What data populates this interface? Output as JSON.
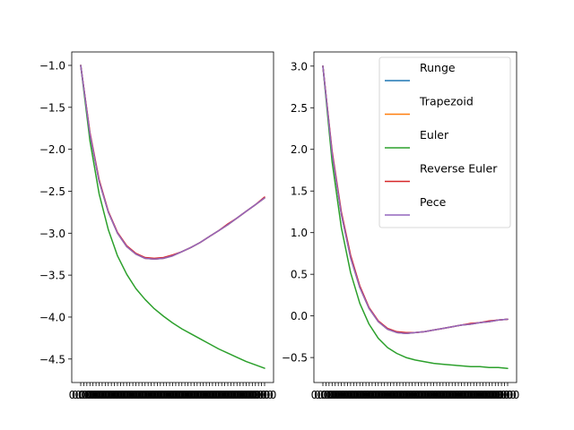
{
  "chart_data": [
    {
      "type": "line",
      "title": "",
      "xlabel": "",
      "ylabel": "",
      "xlim": [
        0,
        2
      ],
      "ylim": [
        -4.78,
        -0.84
      ],
      "yticks": [
        -1.0,
        -1.5,
        -2.0,
        -2.5,
        -3.0,
        -3.5,
        -4.0,
        -4.5
      ],
      "ytick_labels": [
        "−1.0",
        "−1.5",
        "−2.0",
        "−2.5",
        "−3.0",
        "−3.5",
        "−4.0",
        "−4.5"
      ],
      "x_overlapped_tick_text": "0.00",
      "x": [
        0,
        0.1,
        0.2,
        0.3,
        0.4,
        0.5,
        0.6,
        0.7,
        0.8,
        0.9,
        1.0,
        1.1,
        1.2,
        1.3,
        1.4,
        1.5,
        1.6,
        1.7,
        1.8,
        1.9,
        2.0
      ],
      "series": [
        {
          "name": "Runge",
          "color": "#1f77b4",
          "values": [
            -1.0,
            -1.82,
            -2.38,
            -2.75,
            -3.0,
            -3.16,
            -3.25,
            -3.3,
            -3.31,
            -3.3,
            -3.27,
            -3.22,
            -3.17,
            -3.11,
            -3.04,
            -2.97,
            -2.9,
            -2.82,
            -2.74,
            -2.66,
            -2.58
          ]
        },
        {
          "name": "Trapezoid",
          "color": "#ff7f0e",
          "values": [
            -1.0,
            -1.82,
            -2.38,
            -2.75,
            -3.0,
            -3.16,
            -3.25,
            -3.3,
            -3.31,
            -3.3,
            -3.27,
            -3.22,
            -3.17,
            -3.11,
            -3.04,
            -2.97,
            -2.9,
            -2.82,
            -2.74,
            -2.66,
            -2.58
          ]
        },
        {
          "name": "Euler",
          "color": "#2ca02c",
          "values": [
            -1.0,
            -1.9,
            -2.53,
            -2.96,
            -3.27,
            -3.49,
            -3.66,
            -3.79,
            -3.9,
            -3.99,
            -4.07,
            -4.14,
            -4.2,
            -4.26,
            -4.32,
            -4.38,
            -4.43,
            -4.48,
            -4.53,
            -4.57,
            -4.61
          ]
        },
        {
          "name": "Reverse Euler",
          "color": "#d62728",
          "values": [
            -1.0,
            -1.8,
            -2.36,
            -2.74,
            -2.99,
            -3.15,
            -3.24,
            -3.29,
            -3.3,
            -3.29,
            -3.26,
            -3.22,
            -3.17,
            -3.11,
            -3.04,
            -2.97,
            -2.89,
            -2.82,
            -2.74,
            -2.66,
            -2.57
          ]
        },
        {
          "name": "Pece",
          "color": "#9467bd",
          "values": [
            -1.0,
            -1.82,
            -2.38,
            -2.75,
            -3.0,
            -3.16,
            -3.25,
            -3.3,
            -3.31,
            -3.3,
            -3.27,
            -3.22,
            -3.17,
            -3.11,
            -3.04,
            -2.97,
            -2.9,
            -2.82,
            -2.74,
            -2.66,
            -2.58
          ]
        }
      ]
    },
    {
      "type": "line",
      "title": "",
      "xlabel": "",
      "ylabel": "",
      "xlim": [
        0,
        2
      ],
      "ylim": [
        -0.8,
        3.17
      ],
      "yticks": [
        3.0,
        2.5,
        2.0,
        1.5,
        1.0,
        0.5,
        0.0,
        -0.5
      ],
      "ytick_labels": [
        "3.0",
        "2.5",
        "2.0",
        "1.5",
        "1.0",
        "0.5",
        "0.0",
        "−0.5"
      ],
      "x_overlapped_tick_text": "0.00",
      "x": [
        0,
        0.1,
        0.2,
        0.3,
        0.4,
        0.5,
        0.6,
        0.7,
        0.8,
        0.9,
        1.0,
        1.1,
        1.2,
        1.3,
        1.4,
        1.5,
        1.6,
        1.7,
        1.8,
        1.9,
        2.0
      ],
      "series": [
        {
          "name": "Runge",
          "color": "#1f77b4",
          "values": [
            3.0,
            1.95,
            1.22,
            0.7,
            0.34,
            0.09,
            -0.07,
            -0.16,
            -0.2,
            -0.21,
            -0.2,
            -0.19,
            -0.17,
            -0.15,
            -0.13,
            -0.11,
            -0.1,
            -0.08,
            -0.07,
            -0.05,
            -0.04
          ]
        },
        {
          "name": "Trapezoid",
          "color": "#ff7f0e",
          "values": [
            3.0,
            1.95,
            1.22,
            0.7,
            0.34,
            0.09,
            -0.07,
            -0.16,
            -0.2,
            -0.21,
            -0.2,
            -0.19,
            -0.17,
            -0.15,
            -0.13,
            -0.11,
            -0.1,
            -0.08,
            -0.07,
            -0.05,
            -0.04
          ]
        },
        {
          "name": "Euler",
          "color": "#2ca02c",
          "values": [
            3.0,
            1.85,
            1.06,
            0.52,
            0.15,
            -0.1,
            -0.27,
            -0.38,
            -0.45,
            -0.5,
            -0.53,
            -0.55,
            -0.57,
            -0.58,
            -0.59,
            -0.6,
            -0.61,
            -0.61,
            -0.62,
            -0.62,
            -0.63
          ]
        },
        {
          "name": "Reverse Euler",
          "color": "#d62728",
          "values": [
            3.0,
            1.98,
            1.25,
            0.73,
            0.36,
            0.1,
            -0.06,
            -0.15,
            -0.19,
            -0.2,
            -0.2,
            -0.19,
            -0.17,
            -0.15,
            -0.13,
            -0.11,
            -0.09,
            -0.08,
            -0.06,
            -0.05,
            -0.04
          ]
        },
        {
          "name": "Pece",
          "color": "#9467bd",
          "values": [
            3.0,
            1.95,
            1.22,
            0.7,
            0.34,
            0.09,
            -0.07,
            -0.16,
            -0.2,
            -0.21,
            -0.2,
            -0.19,
            -0.17,
            -0.15,
            -0.13,
            -0.11,
            -0.1,
            -0.08,
            -0.07,
            -0.05,
            -0.04
          ]
        }
      ],
      "legend": {
        "placement": "top-right",
        "entries": [
          {
            "label": "Runge",
            "color": "#1f77b4"
          },
          {
            "label": "Trapezoid",
            "color": "#ff7f0e"
          },
          {
            "label": "Euler",
            "color": "#2ca02c"
          },
          {
            "label": "Reverse Euler",
            "color": "#d62728"
          },
          {
            "label": "Pece",
            "color": "#9467bd"
          }
        ]
      }
    }
  ]
}
